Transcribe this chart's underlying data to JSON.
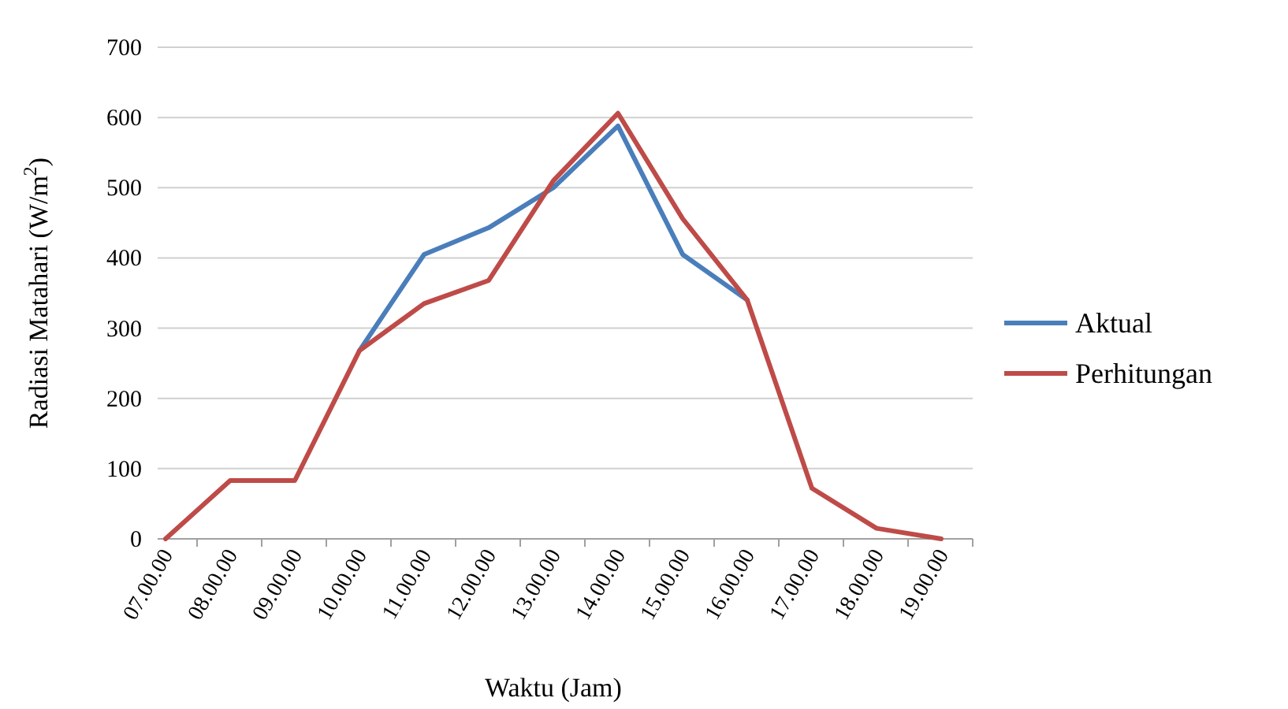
{
  "chart_data": {
    "type": "line",
    "xlabel": "Waktu (Jam)",
    "ylabel": "Radiasi Matahari (W/m$^{2}$)",
    "categories": [
      "07.00.00",
      "08.00.00",
      "09.00.00",
      "10.00.00",
      "11.00.00",
      "12.00.00",
      "13.00.00",
      "14.00.00",
      "15.00.00",
      "16.00.00",
      "17.00.00",
      "18.00.00",
      "19.00.00"
    ],
    "series": [
      {
        "name": "Aktual",
        "color": "#4a7ebb",
        "values": [
          null,
          null,
          null,
          268,
          405,
          443,
          500,
          588,
          405,
          340,
          null,
          null,
          null
        ]
      },
      {
        "name": "Perhitungan",
        "color": "#be4b48",
        "values": [
          0,
          83,
          83,
          268,
          335,
          368,
          510,
          606,
          456,
          340,
          72,
          15,
          0
        ]
      }
    ],
    "ylim": [
      0,
      700
    ],
    "yticks": [
      0,
      100,
      200,
      300,
      400,
      500,
      600,
      700
    ],
    "grid": "y",
    "legend": "right",
    "marker": "none",
    "line_style": "solid"
  }
}
